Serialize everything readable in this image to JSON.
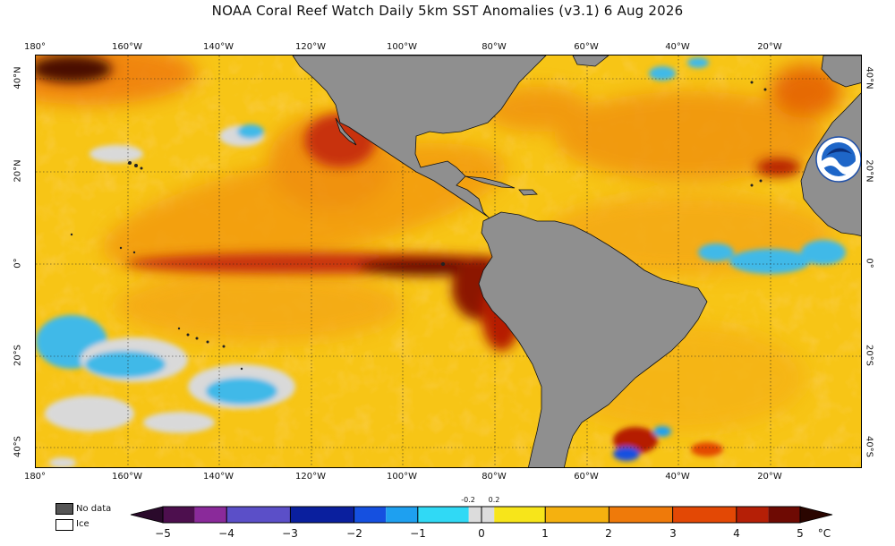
{
  "title": "NOAA Coral Reef Watch Daily 5km SST Anomalies  (v3.1)   6 Aug 2026",
  "map": {
    "lon_labels_top": [
      "180°",
      "160°W",
      "140°W",
      "120°W",
      "100°W",
      "80°W",
      "60°W",
      "40°W",
      "20°W"
    ],
    "lon_labels_bottom": [
      "180°",
      "160°W",
      "140°W",
      "120°W",
      "100°W",
      "80°W",
      "60°W",
      "40°W",
      "20°W"
    ],
    "lat_labels_left": [
      "40°N",
      "20°N",
      "0°",
      "20°S",
      "40°S"
    ],
    "lat_labels_right": [
      "40°N",
      "20°N",
      "0°",
      "20°S",
      "40°S"
    ],
    "logo_text": "NOAA",
    "colors": {
      "land": "#8f8f8f",
      "ocean_base": "#f7c516",
      "hot": "#b51f06",
      "extreme": "#4a0a02",
      "cold": "#3fb9e8",
      "ice": "#d9d9d9"
    }
  },
  "legend": {
    "nodata_label": "No data",
    "ice_label": "Ice",
    "nodata_color": "#555555",
    "ice_color": "#ffffff"
  },
  "colorbar": {
    "tick_labels": [
      "−5",
      "−4",
      "−3",
      "−2",
      "−1",
      "0",
      "1",
      "2",
      "3",
      "4",
      "5"
    ],
    "small_labels": [
      "-0.2",
      "0.2"
    ],
    "unit": "°C",
    "segments": [
      {
        "color": "#4d0f4e"
      },
      {
        "color": "#8a2a9a"
      },
      {
        "color": "#5b4fc8"
      },
      {
        "color": "#0a1f9e"
      },
      {
        "color": "#1550e0"
      },
      {
        "color": "#1ea0f0"
      },
      {
        "color": "#30d9f5"
      },
      {
        "color": "#dcdcdc"
      },
      {
        "color": "#f7e51a"
      },
      {
        "color": "#f5b10f"
      },
      {
        "color": "#ef7a0a"
      },
      {
        "color": "#e34805"
      },
      {
        "color": "#b51f06"
      },
      {
        "color": "#6e0a03"
      }
    ]
  }
}
